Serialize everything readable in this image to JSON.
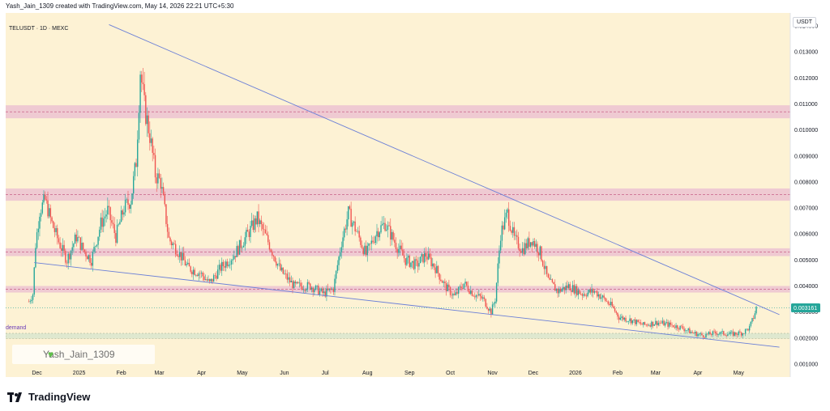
{
  "header": {
    "title": "Yash_Jain_1309 created with TradingView.com, May 14, 2026 22:21 UTC+5:30"
  },
  "chart": {
    "symbol": "TELUSDT · 1D · MEXC",
    "currency": "USDT",
    "demand_label": "demand",
    "watermark_text": "Yash_Jain_1309",
    "last_price_label": "0.003161",
    "colors": {
      "background": "#fdf2d4",
      "zone_fill": "#ecc3d1",
      "demand_fill": "#dfe8cf",
      "bull": "#26a69a",
      "bear": "#ef5350",
      "trendline": "#6a7fd7",
      "price_tag": "#26a69a"
    },
    "icons": {
      "heart": "heart-icon",
      "brand": "tradingview-logo-icon"
    }
  },
  "footer": {
    "brand_text": "TradingView"
  },
  "chart_data": {
    "type": "candlestick",
    "y_axis_ticks": [
      "0.014000",
      "0.013000",
      "0.012000",
      "0.011000",
      "0.010000",
      "0.009000",
      "0.008000",
      "0.007000",
      "0.006000",
      "0.005000",
      "0.004000",
      "0.003000",
      "0.002000",
      "0.001000"
    ],
    "x_axis_labels": [
      "Dec",
      "2025",
      "Feb",
      "Mar",
      "Apr",
      "May",
      "Jun",
      "Jul",
      "Aug",
      "Sep",
      "Oct",
      "Nov",
      "Dec",
      "2026",
      "Feb",
      "Mar",
      "Apr",
      "May"
    ],
    "ylim": [
      0.0005,
      0.0145
    ],
    "last_price": 0.003161,
    "resistance_zones": [
      [
        0.01045,
        0.01095
      ],
      [
        0.00728,
        0.00775
      ],
      [
        0.00515,
        0.00545
      ],
      [
        0.00375,
        0.004
      ]
    ],
    "demand_zone": [
      0.00198,
      0.00218
    ],
    "trendlines": [
      {
        "from": [
          "2024-11-29",
          0.0049
        ],
        "to": [
          "2026-05-31",
          0.00165
        ]
      },
      {
        "from": [
          "2025-01-23",
          0.01405
        ],
        "to": [
          "2026-05-31",
          0.0029
        ]
      }
    ],
    "price_path": [
      [
        "2024-11-25",
        0.0034
      ],
      [
        "2024-11-28",
        0.0037
      ],
      [
        "2024-11-30",
        0.0056
      ],
      [
        "2024-12-03",
        0.0069
      ],
      [
        "2024-12-07",
        0.0073
      ],
      [
        "2024-12-12",
        0.0064
      ],
      [
        "2024-12-17",
        0.0057
      ],
      [
        "2024-12-23",
        0.005
      ],
      [
        "2024-12-30",
        0.0059
      ],
      [
        "2025-01-04",
        0.0054
      ],
      [
        "2025-01-10",
        0.005
      ],
      [
        "2025-01-17",
        0.0064
      ],
      [
        "2025-01-22",
        0.0069
      ],
      [
        "2025-01-28",
        0.0059
      ],
      [
        "2025-02-03",
        0.007
      ],
      [
        "2025-02-08",
        0.0073
      ],
      [
        "2025-02-12",
        0.0088
      ],
      [
        "2025-02-15",
        0.0123
      ],
      [
        "2025-02-18",
        0.0109
      ],
      [
        "2025-02-22",
        0.0098
      ],
      [
        "2025-02-26",
        0.0083
      ],
      [
        "2025-03-02",
        0.008
      ],
      [
        "2025-03-08",
        0.0058
      ],
      [
        "2025-03-14",
        0.0054
      ],
      [
        "2025-03-22",
        0.0047
      ],
      [
        "2025-03-31",
        0.0045
      ],
      [
        "2025-04-07",
        0.0041
      ],
      [
        "2025-04-15",
        0.0047
      ],
      [
        "2025-04-25",
        0.0052
      ],
      [
        "2025-05-05",
        0.006
      ],
      [
        "2025-05-12",
        0.0066
      ],
      [
        "2025-05-20",
        0.0057
      ],
      [
        "2025-05-29",
        0.0046
      ],
      [
        "2025-06-08",
        0.004
      ],
      [
        "2025-06-20",
        0.004
      ],
      [
        "2025-06-30",
        0.0037
      ],
      [
        "2025-07-07",
        0.0039
      ],
      [
        "2025-07-13",
        0.0057
      ],
      [
        "2025-07-18",
        0.0068
      ],
      [
        "2025-07-24",
        0.0061
      ],
      [
        "2025-07-31",
        0.0052
      ],
      [
        "2025-08-08",
        0.0061
      ],
      [
        "2025-08-14",
        0.0064
      ],
      [
        "2025-08-22",
        0.0056
      ],
      [
        "2025-08-29",
        0.005
      ],
      [
        "2025-09-06",
        0.0048
      ],
      [
        "2025-09-13",
        0.0052
      ],
      [
        "2025-09-20",
        0.0047
      ],
      [
        "2025-09-27",
        0.004
      ],
      [
        "2025-10-04",
        0.0036
      ],
      [
        "2025-10-11",
        0.0041
      ],
      [
        "2025-10-18",
        0.0037
      ],
      [
        "2025-10-25",
        0.0035
      ],
      [
        "2025-10-31",
        0.003
      ],
      [
        "2025-11-03",
        0.0035
      ],
      [
        "2025-11-07",
        0.006
      ],
      [
        "2025-11-12",
        0.0068
      ],
      [
        "2025-11-17",
        0.0058
      ],
      [
        "2025-11-23",
        0.0054
      ],
      [
        "2025-11-30",
        0.0058
      ],
      [
        "2025-12-06",
        0.0053
      ],
      [
        "2025-12-12",
        0.0042
      ],
      [
        "2025-12-19",
        0.0038
      ],
      [
        "2025-12-27",
        0.004
      ],
      [
        "2026-01-06",
        0.0037
      ],
      [
        "2026-01-15",
        0.0038
      ],
      [
        "2026-01-22",
        0.0035
      ],
      [
        "2026-01-28",
        0.0032
      ],
      [
        "2026-02-02",
        0.0028
      ],
      [
        "2026-02-10",
        0.0027
      ],
      [
        "2026-02-20",
        0.0025
      ],
      [
        "2026-03-02",
        0.0026
      ],
      [
        "2026-03-12",
        0.0025
      ],
      [
        "2026-03-20",
        0.0024
      ],
      [
        "2026-03-28",
        0.0022
      ],
      [
        "2026-04-05",
        0.0021
      ],
      [
        "2026-04-15",
        0.0022
      ],
      [
        "2026-04-25",
        0.00215
      ],
      [
        "2026-05-04",
        0.0022
      ],
      [
        "2026-05-09",
        0.0024
      ],
      [
        "2026-05-12",
        0.0028
      ],
      [
        "2026-05-14",
        0.00316
      ]
    ]
  }
}
